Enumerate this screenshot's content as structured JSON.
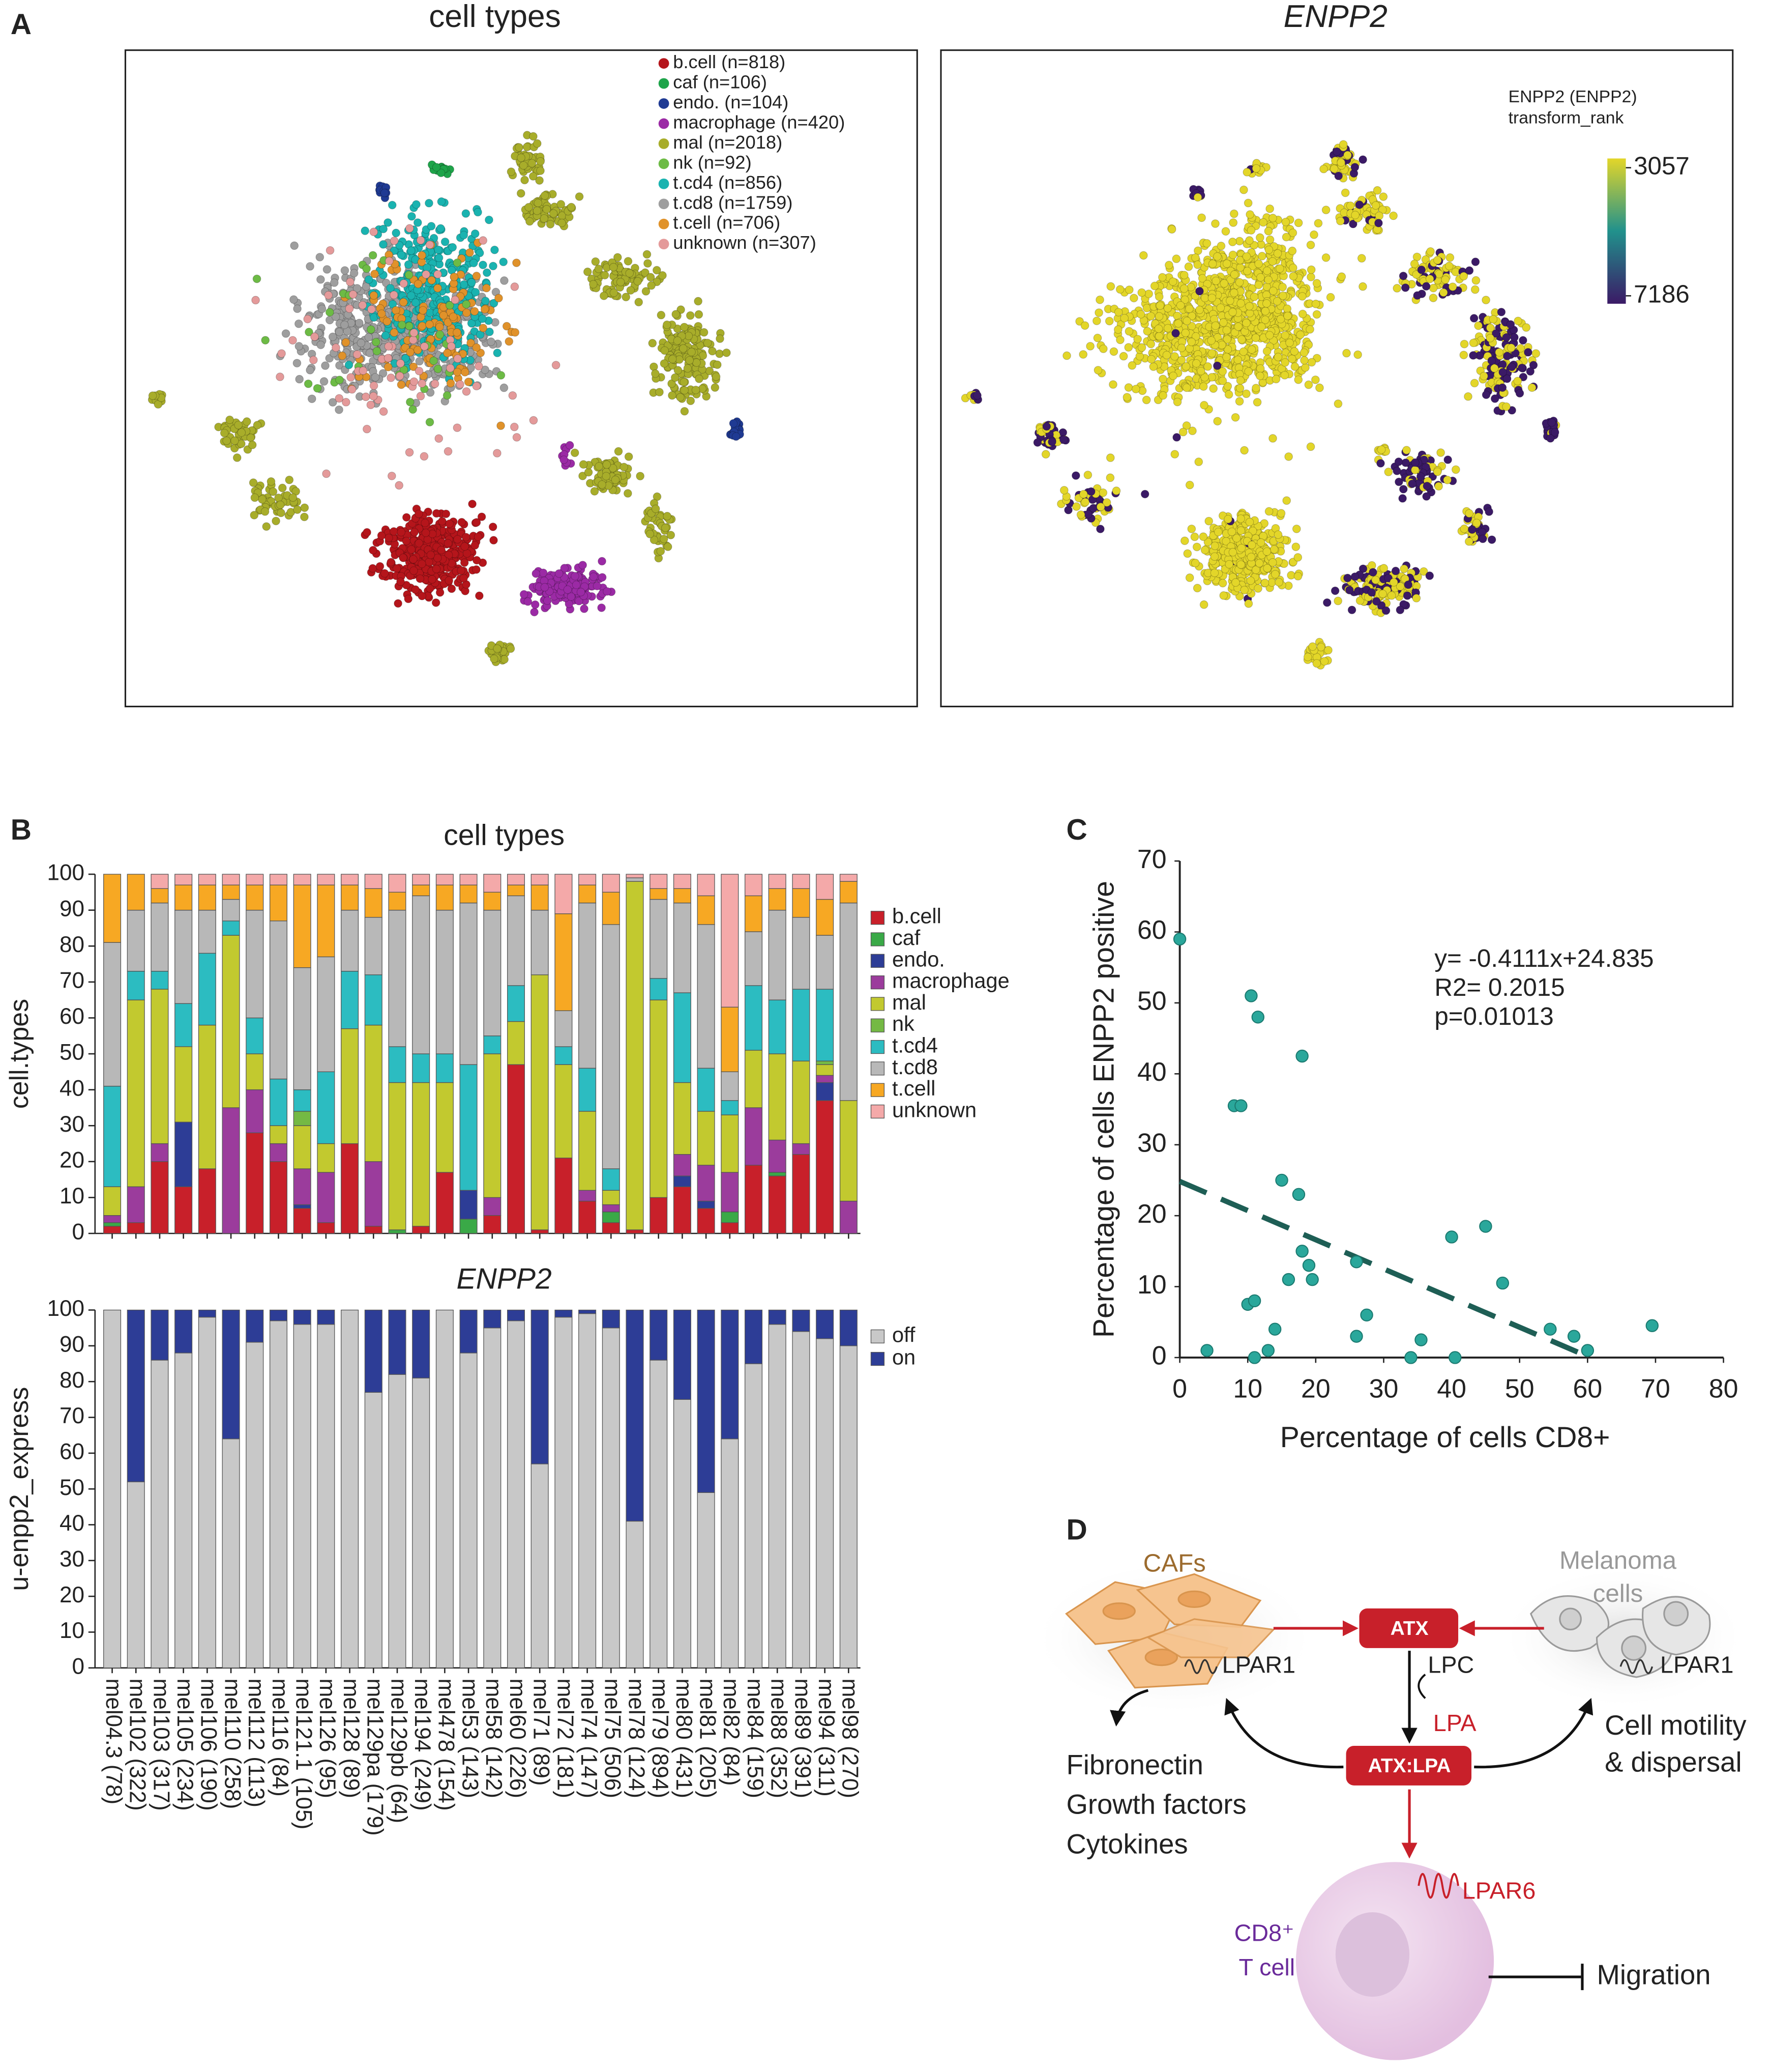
{
  "panel_labels": [
    "A",
    "B",
    "C",
    "D"
  ],
  "chart_data": [
    {
      "type": "scatter",
      "title": "cell types",
      "series": [
        {
          "name": "b.cell (n=818)",
          "color": "#b5151b"
        },
        {
          "name": "caf (n=106)",
          "color": "#1ea44a"
        },
        {
          "name": "endo. (n=104)",
          "color": "#1f3a93"
        },
        {
          "name": "macrophage (n=420)",
          "color": "#9b2aa5"
        },
        {
          "name": "mal (n=2018)",
          "color": "#a8ad2a"
        },
        {
          "name": "nk (n=92)",
          "color": "#6dbb45"
        },
        {
          "name": "t.cd4 (n=856)",
          "color": "#1ab3b0"
        },
        {
          "name": "t.cd8 (n=1759)",
          "color": "#9e9e9e"
        },
        {
          "name": "t.cell (n=706)",
          "color": "#e0922a"
        },
        {
          "name": "unknown (n=307)",
          "color": "#e49a9a"
        }
      ]
    },
    {
      "type": "scatter",
      "title": "ENPP2",
      "colorbar": {
        "title": "ENPP2 (ENPP2)",
        "subtitle": "transform_rank",
        "ticks": [
          3057,
          7186
        ],
        "colors": [
          "#e3d629",
          "#21918c",
          "#3b1a66"
        ]
      }
    },
    {
      "type": "bar",
      "stacked": true,
      "title": "cell types",
      "ylabel": "cell.types",
      "ylim": [
        0,
        100
      ],
      "yticks": [
        0,
        10,
        20,
        30,
        40,
        50,
        60,
        70,
        80,
        90,
        100
      ],
      "series": [
        {
          "name": "b.cell",
          "color": "#c8202a",
          "values": [
            2,
            3,
            20,
            13,
            18,
            0,
            28,
            20,
            7,
            3,
            25,
            2,
            0,
            2,
            17,
            0,
            5,
            47,
            1,
            21,
            9,
            3,
            1,
            10,
            13,
            7,
            3,
            19,
            16,
            22,
            37,
            0
          ]
        },
        {
          "name": "caf",
          "color": "#3aa947",
          "values": [
            1,
            0,
            0,
            0,
            0,
            0,
            0,
            0,
            0,
            0,
            0,
            0,
            1,
            0,
            0,
            4,
            0,
            0,
            0,
            0,
            0,
            3,
            0,
            0,
            0,
            0,
            3,
            0,
            1,
            0,
            0,
            0
          ]
        },
        {
          "name": "endo.",
          "color": "#2d3d96",
          "values": [
            0,
            0,
            0,
            18,
            0,
            0,
            0,
            0,
            1,
            0,
            0,
            0,
            0,
            0,
            0,
            8,
            0,
            0,
            0,
            0,
            0,
            0,
            0,
            0,
            3,
            2,
            0,
            0,
            0,
            0,
            5,
            0
          ]
        },
        {
          "name": "macrophage",
          "color": "#9b3c9c",
          "values": [
            2,
            10,
            5,
            0,
            0,
            35,
            12,
            5,
            10,
            14,
            0,
            18,
            0,
            0,
            0,
            0,
            5,
            0,
            0,
            0,
            3,
            2,
            0,
            0,
            6,
            10,
            11,
            16,
            9,
            3,
            2,
            9
          ]
        },
        {
          "name": "mal",
          "color": "#c2c92f",
          "values": [
            8,
            52,
            43,
            21,
            40,
            48,
            10,
            5,
            12,
            8,
            32,
            38,
            41,
            40,
            25,
            0,
            40,
            12,
            71,
            26,
            22,
            4,
            97,
            55,
            20,
            15,
            16,
            16,
            24,
            23,
            3,
            28
          ]
        },
        {
          "name": "nk",
          "color": "#74b944",
          "values": [
            0,
            0,
            0,
            0,
            0,
            0,
            0,
            0,
            4,
            0,
            0,
            0,
            0,
            0,
            0,
            0,
            0,
            0,
            0,
            0,
            0,
            0,
            0,
            0,
            0,
            0,
            0,
            0,
            0,
            0,
            1,
            0
          ]
        },
        {
          "name": "t.cd4",
          "color": "#2cbcc1",
          "values": [
            28,
            8,
            5,
            12,
            20,
            4,
            10,
            13,
            6,
            20,
            16,
            14,
            10,
            8,
            8,
            35,
            5,
            10,
            0,
            5,
            12,
            6,
            0,
            6,
            25,
            12,
            4,
            18,
            15,
            20,
            20,
            0
          ]
        },
        {
          "name": "t.cd8",
          "color": "#b8b8b8",
          "values": [
            40,
            17,
            19,
            26,
            12,
            6,
            30,
            44,
            34,
            32,
            17,
            16,
            38,
            44,
            40,
            45,
            35,
            25,
            18,
            10,
            46,
            68,
            1,
            22,
            25,
            40,
            8,
            15,
            25,
            20,
            15,
            55
          ]
        },
        {
          "name": "t.cell",
          "color": "#f7a823",
          "values": [
            19,
            10,
            4,
            7,
            7,
            4,
            7,
            10,
            23,
            20,
            7,
            8,
            5,
            3,
            7,
            5,
            5,
            3,
            7,
            27,
            5,
            9,
            0,
            3,
            4,
            8,
            18,
            10,
            6,
            8,
            10,
            6
          ]
        },
        {
          "name": "unknown",
          "color": "#f4a9a9",
          "values": [
            0,
            0,
            4,
            3,
            3,
            3,
            3,
            3,
            3,
            3,
            3,
            4,
            5,
            3,
            3,
            3,
            5,
            3,
            3,
            11,
            3,
            5,
            1,
            4,
            4,
            6,
            37,
            6,
            4,
            4,
            7,
            2
          ]
        }
      ]
    },
    {
      "type": "bar",
      "stacked": true,
      "title": "ENPP2",
      "ylabel": "u-enpp2_express",
      "ylim": [
        0,
        100
      ],
      "yticks": [
        0,
        10,
        20,
        30,
        40,
        50,
        60,
        70,
        80,
        90,
        100
      ],
      "categories": [
        "mel04.3 (78)",
        "mel102 (322)",
        "mel103 (317)",
        "mel105 (234)",
        "mel106 (190)",
        "mel110 (258)",
        "mel112 (113)",
        "mel116 (84)",
        "mel121.1 (105)",
        "mel126 (95)",
        "mel128 (89)",
        "mel129pa (179)",
        "mel129pb (64)",
        "mel194 (249)",
        "mel478 (154)",
        "mel53 (143)",
        "mel58 (142)",
        "mel60 (226)",
        "mel71 (89)",
        "mel72 (181)",
        "mel74 (147)",
        "mel75 (506)",
        "mel78 (124)",
        "mel79 (894)",
        "mel80 (431)",
        "mel81 (205)",
        "mel82 (84)",
        "mel84 (159)",
        "mel88 (352)",
        "mel89 (391)",
        "mel94 (311)",
        "mel98 (270)"
      ],
      "series": [
        {
          "name": "off",
          "color": "#c8c8c8",
          "values": [
            100,
            52,
            86,
            88,
            98,
            64,
            91,
            97,
            96,
            96,
            100,
            77,
            82,
            81,
            100,
            88,
            95,
            97,
            57,
            98,
            99,
            95,
            41,
            86,
            75,
            49,
            64,
            85,
            96,
            94,
            92,
            90
          ]
        },
        {
          "name": "on",
          "color": "#2d3d96",
          "values": [
            0,
            48,
            14,
            12,
            2,
            36,
            9,
            3,
            4,
            4,
            0,
            23,
            18,
            19,
            0,
            12,
            5,
            3,
            43,
            2,
            1,
            5,
            59,
            14,
            25,
            51,
            36,
            15,
            4,
            6,
            8,
            10
          ]
        }
      ]
    },
    {
      "type": "scatter",
      "xlabel": "Percentage of cells CD8+",
      "ylabel": "Percentage of cells ENPP2 positive",
      "xlim": [
        0,
        80
      ],
      "xticks": [
        0,
        10,
        20,
        30,
        40,
        50,
        60,
        70,
        80
      ],
      "ylim": [
        0,
        70
      ],
      "yticks": [
        0,
        10,
        20,
        30,
        40,
        50,
        60,
        70
      ],
      "color": "#2aa79b",
      "x": [
        0,
        4,
        8,
        9,
        10,
        10.5,
        11,
        11,
        11.5,
        13,
        14,
        15,
        16,
        17.5,
        18,
        18,
        19,
        19.5,
        26,
        26,
        27.5,
        34,
        35.5,
        40,
        40.5,
        45,
        47.5,
        54.5,
        58,
        60,
        69.5
      ],
      "values": [
        59,
        1,
        35.5,
        35.5,
        7.5,
        51,
        0,
        8,
        48,
        1,
        4,
        25,
        11,
        23,
        15,
        42.5,
        13,
        11,
        13.5,
        3,
        6,
        0,
        2.5,
        17,
        0,
        18.5,
        10.5,
        4,
        3,
        1,
        4.5
      ],
      "trendline": {
        "slope": -0.4111,
        "intercept": 24.835,
        "color": "#1e5e55"
      },
      "annotations": [
        "y= -0.4111x+24.835",
        "R2= 0.2015",
        "p=0.01013"
      ]
    }
  ],
  "diagram": {
    "cafs": "CAFs",
    "melanoma": [
      "Melanoma",
      "cells"
    ],
    "atx": "ATX",
    "lpc": "LPC",
    "lpa": "LPA",
    "lpar1_left": "LPAR1",
    "lpar1_right": "LPAR1",
    "caf_products": [
      "Fibronectin",
      "Growth factors",
      "Cytokines"
    ],
    "motility": [
      "Cell motility",
      "& dispersal"
    ],
    "atx_lpa": "ATX:LPA",
    "lpar6": "LPAR6",
    "cd8": "CD8⁺",
    "tcell": "T cell",
    "migration": "Migration"
  }
}
